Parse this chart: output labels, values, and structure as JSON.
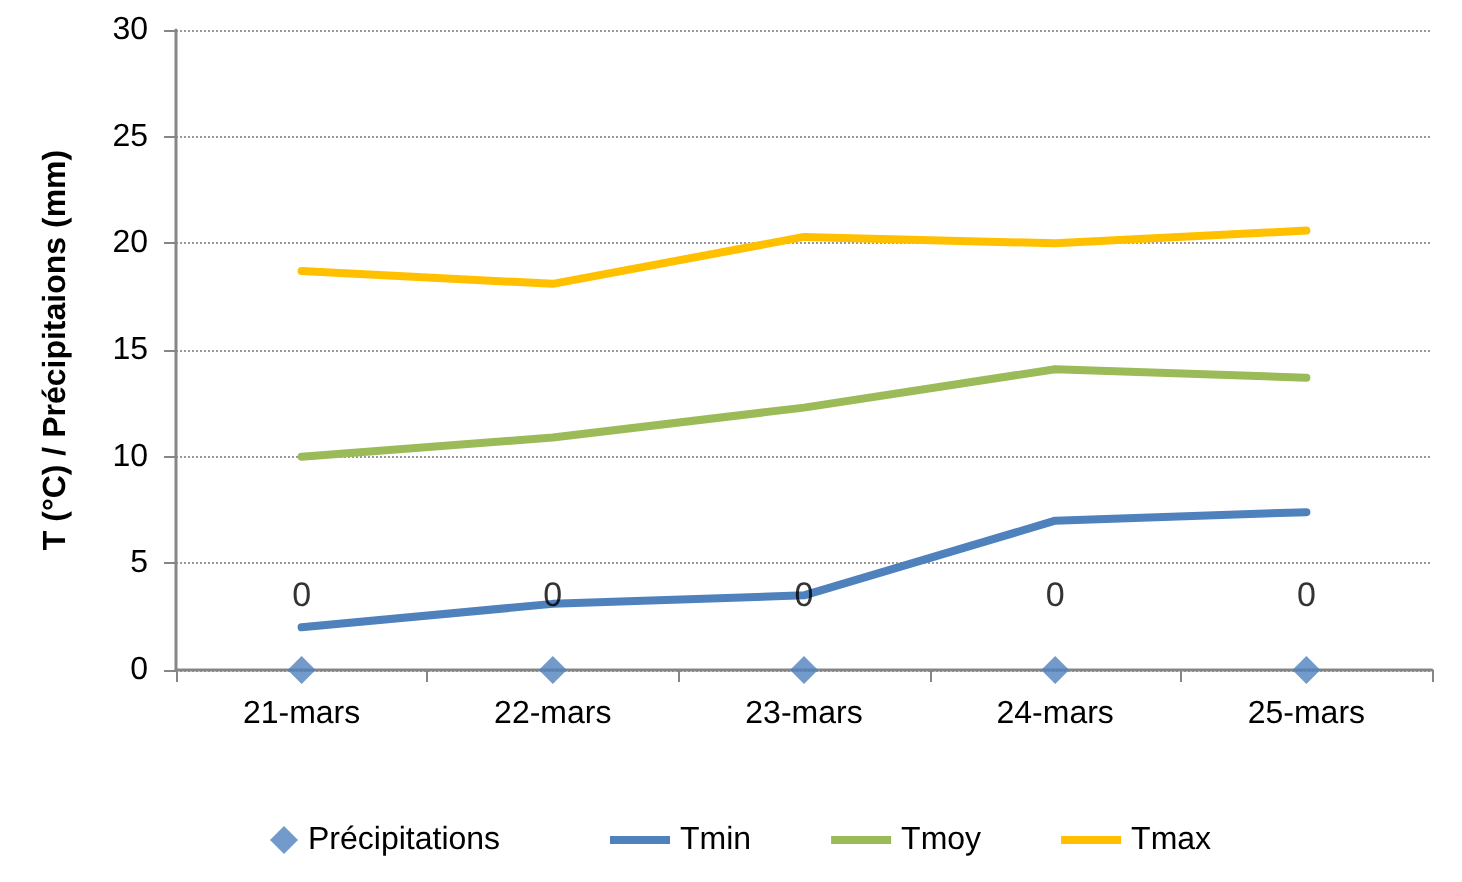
{
  "chart_data": {
    "type": "line",
    "ylabel": "T (°C) / Précipitaions (mm)",
    "categories": [
      "21-mars",
      "22-mars",
      "23-mars",
      "24-mars",
      "25-mars"
    ],
    "series": [
      {
        "name": "Précipitations",
        "type": "scatter",
        "marker": "diamond",
        "color": "#4f81bd",
        "values": [
          0,
          0,
          0,
          0,
          0
        ],
        "value_labels": [
          "0",
          "0",
          "0",
          "0",
          "0"
        ]
      },
      {
        "name": "Tmin",
        "color": "#4f81bd",
        "values": [
          2.0,
          3.1,
          3.5,
          7.0,
          7.4
        ]
      },
      {
        "name": "Tmoy",
        "color": "#9bbb59",
        "values": [
          10.0,
          10.9,
          12.3,
          14.1,
          13.7
        ]
      },
      {
        "name": "Tmax",
        "color": "#ffc000",
        "values": [
          18.7,
          18.1,
          20.3,
          20.0,
          20.6
        ]
      }
    ],
    "ylim": [
      0,
      30
    ],
    "yticks": [
      0,
      5,
      10,
      15,
      20,
      25,
      30
    ],
    "grid": "y",
    "legend": "bottom",
    "marker": "none",
    "line_style": "solid"
  }
}
